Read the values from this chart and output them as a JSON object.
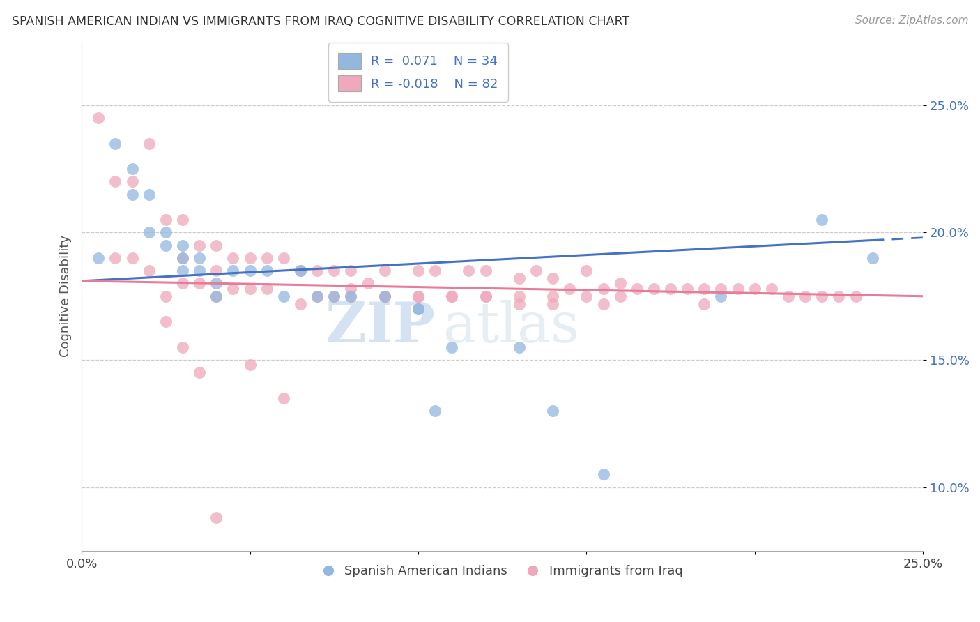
{
  "title": "SPANISH AMERICAN INDIAN VS IMMIGRANTS FROM IRAQ COGNITIVE DISABILITY CORRELATION CHART",
  "source": "Source: ZipAtlas.com",
  "ylabel": "Cognitive Disability",
  "watermark": "ZIPatlas",
  "blue_label": "Spanish American Indians",
  "pink_label": "Immigrants from Iraq",
  "blue_color": "#92b8e0",
  "pink_color": "#f0a8bc",
  "blue_line_color": "#4472c4",
  "pink_line_color": "#e87a9a",
  "xlim": [
    0.0,
    0.25
  ],
  "ylim": [
    0.075,
    0.275
  ],
  "yticks": [
    0.1,
    0.15,
    0.2,
    0.25
  ],
  "ytick_labels": [
    "10.0%",
    "15.0%",
    "20.0%",
    "25.0%"
  ],
  "blue_x": [
    0.005,
    0.01,
    0.015,
    0.015,
    0.02,
    0.02,
    0.025,
    0.025,
    0.03,
    0.03,
    0.03,
    0.035,
    0.035,
    0.04,
    0.04,
    0.045,
    0.05,
    0.055,
    0.06,
    0.065,
    0.07,
    0.075,
    0.08,
    0.09,
    0.1,
    0.1,
    0.105,
    0.11,
    0.13,
    0.14,
    0.155,
    0.19,
    0.22,
    0.235
  ],
  "blue_y": [
    0.19,
    0.235,
    0.225,
    0.215,
    0.215,
    0.2,
    0.2,
    0.195,
    0.195,
    0.19,
    0.185,
    0.19,
    0.185,
    0.18,
    0.175,
    0.185,
    0.185,
    0.185,
    0.175,
    0.185,
    0.175,
    0.175,
    0.175,
    0.175,
    0.17,
    0.17,
    0.13,
    0.155,
    0.155,
    0.13,
    0.105,
    0.175,
    0.205,
    0.19
  ],
  "pink_x": [
    0.005,
    0.01,
    0.01,
    0.015,
    0.015,
    0.02,
    0.02,
    0.025,
    0.025,
    0.03,
    0.03,
    0.03,
    0.035,
    0.035,
    0.04,
    0.04,
    0.04,
    0.045,
    0.045,
    0.05,
    0.05,
    0.055,
    0.055,
    0.06,
    0.065,
    0.065,
    0.07,
    0.075,
    0.075,
    0.08,
    0.08,
    0.085,
    0.09,
    0.09,
    0.1,
    0.1,
    0.105,
    0.11,
    0.115,
    0.12,
    0.12,
    0.13,
    0.13,
    0.135,
    0.14,
    0.14,
    0.145,
    0.15,
    0.155,
    0.155,
    0.16,
    0.165,
    0.17,
    0.175,
    0.18,
    0.185,
    0.185,
    0.19,
    0.195,
    0.2,
    0.205,
    0.21,
    0.215,
    0.22,
    0.225,
    0.23,
    0.025,
    0.03,
    0.035,
    0.04,
    0.05,
    0.06,
    0.07,
    0.08,
    0.09,
    0.1,
    0.11,
    0.12,
    0.13,
    0.14,
    0.15,
    0.16
  ],
  "pink_y": [
    0.245,
    0.22,
    0.19,
    0.22,
    0.19,
    0.235,
    0.185,
    0.205,
    0.175,
    0.205,
    0.19,
    0.18,
    0.195,
    0.18,
    0.195,
    0.185,
    0.175,
    0.19,
    0.178,
    0.19,
    0.178,
    0.19,
    0.178,
    0.19,
    0.185,
    0.172,
    0.185,
    0.185,
    0.175,
    0.185,
    0.175,
    0.18,
    0.185,
    0.175,
    0.185,
    0.175,
    0.185,
    0.175,
    0.185,
    0.185,
    0.175,
    0.182,
    0.172,
    0.185,
    0.182,
    0.172,
    0.178,
    0.185,
    0.178,
    0.172,
    0.18,
    0.178,
    0.178,
    0.178,
    0.178,
    0.178,
    0.172,
    0.178,
    0.178,
    0.178,
    0.178,
    0.175,
    0.175,
    0.175,
    0.175,
    0.175,
    0.165,
    0.155,
    0.145,
    0.088,
    0.148,
    0.135,
    0.175,
    0.178,
    0.175,
    0.175,
    0.175,
    0.175,
    0.175,
    0.175,
    0.175,
    0.175
  ]
}
